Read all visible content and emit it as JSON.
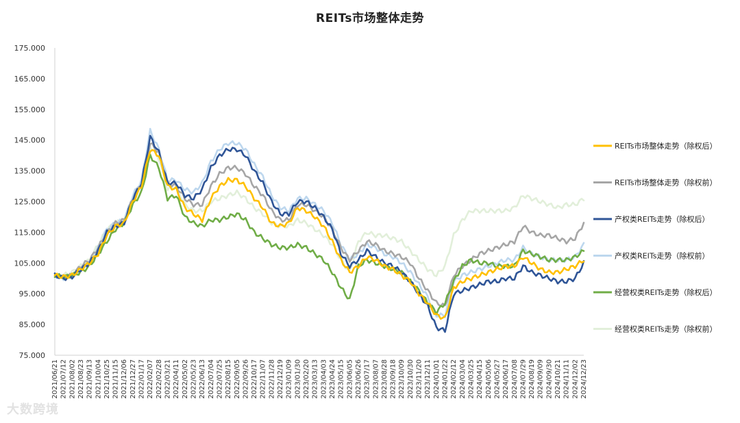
{
  "chart_data": {
    "type": "line",
    "title": "REITs市场整体走势",
    "ylim": [
      75,
      175
    ],
    "yticks": [
      "75.000",
      "85.000",
      "95.000",
      "105.000",
      "115.000",
      "125.000",
      "135.000",
      "145.000",
      "155.000",
      "165.000",
      "175.000"
    ],
    "ytick_values": [
      75,
      85,
      95,
      105,
      115,
      125,
      135,
      145,
      155,
      165,
      175
    ],
    "x": [
      "2021/06/21",
      "2021/07/12",
      "2021/08/02",
      "2021/08/23",
      "2021/09/13",
      "2021/10/04",
      "2021/10/25",
      "2021/11/15",
      "2021/12/06",
      "2021/12/27",
      "2022/01/17",
      "2022/02/07",
      "2022/02/28",
      "2022/03/21",
      "2022/04/11",
      "2022/05/02",
      "2022/05/23",
      "2022/06/13",
      "2022/07/04",
      "2022/07/25",
      "2022/08/15",
      "2022/09/05",
      "2022/09/26",
      "2022/10/17",
      "2022/11/07",
      "2022/11/28",
      "2022/12/19",
      "2023/01/09",
      "2023/01/30",
      "2023/02/20",
      "2023/03/13",
      "2023/04/03",
      "2023/04/24",
      "2023/05/15",
      "2023/06/05",
      "2023/06/26",
      "2023/07/17",
      "2023/08/07",
      "2023/08/28",
      "2023/09/18",
      "2023/10/09",
      "2023/10/30",
      "2023/11/20",
      "2023/12/11",
      "2024/01/01",
      "2024/01/22",
      "2024/02/12",
      "2024/03/04",
      "2024/03/25",
      "2024/04/15",
      "2024/05/06",
      "2024/05/27",
      "2024/06/17",
      "2024/07/08",
      "2024/07/29",
      "2024/08/19",
      "2024/09/09",
      "2024/09/30",
      "2024/10/21",
      "2024/11/11",
      "2024/12/02",
      "2024/12/23"
    ],
    "x_tick_labels": [
      "2021/06/21",
      "2021/07/12",
      "2021/08/02",
      "2021/08/23",
      "2021/09/13",
      "2021/10/04",
      "2021/10/25",
      "2021/11/15",
      "2021/12/06",
      "2021/12/27",
      "2022/01/17",
      "2022/02/07",
      "2022/02/28",
      "2022/03/21",
      "2022/04/11",
      "2022/05/02",
      "2022/05/23",
      "2022/06/13",
      "2022/07/04",
      "2022/07/25",
      "2022/08/15",
      "2022/09/05",
      "2022/09/26",
      "2022/10/17",
      "2022/11/07",
      "2022/11/28",
      "2022/12/19",
      "2023/01/09",
      "2023/01/30",
      "2023/02/20",
      "2023/03/13",
      "2023/04/03",
      "2023/04/24",
      "2023/05/15",
      "2023/06/05",
      "2023/06/26",
      "2023/07/17",
      "2023/08/07",
      "2023/08/28",
      "2023/09/18",
      "2023/10/09",
      "2023/10/30",
      "2023/11/20",
      "2023/12/11",
      "2024/01/01",
      "2024/01/22",
      "2024/02/12",
      "2024/03/04",
      "2024/03/25",
      "2024/04/15",
      "2024/05/06",
      "2024/05/27",
      "2024/06/17",
      "2024/07/08",
      "2024/07/29",
      "2024/08/19",
      "2024/09/09",
      "2024/09/30",
      "2024/10/21",
      "2024/11/11",
      "2024/12/02",
      "2024/12/23"
    ],
    "series": [
      {
        "name": "REITs市场整体走势（除权后）",
        "color": "#ffc000",
        "values": [
          101,
          100.5,
          101,
          103,
          105,
          108,
          114,
          117,
          118,
          125,
          130,
          142,
          140,
          130,
          129,
          123,
          121,
          119,
          126,
          130,
          132,
          132,
          130,
          126,
          123,
          118,
          117,
          118,
          123,
          122,
          120,
          117,
          112,
          106,
          102,
          104,
          107,
          106,
          104,
          103,
          101,
          99,
          95,
          92,
          88,
          87,
          97,
          99,
          100,
          101,
          102,
          103,
          104,
          104,
          107,
          105,
          103,
          102,
          102,
          103,
          104,
          106
        ]
      },
      {
        "name": "REITs市场整体走势（除权前）",
        "color": "#a6a6a6",
        "values": [
          101,
          100.5,
          101,
          104,
          106,
          110,
          115,
          118,
          119,
          126,
          131,
          144,
          141,
          131,
          130,
          126,
          124,
          124,
          130,
          134,
          136,
          136,
          134,
          130,
          127,
          122,
          119,
          119,
          124,
          124,
          122,
          120,
          116,
          110,
          106,
          109,
          112,
          111,
          109,
          108,
          107,
          105,
          100,
          96,
          92,
          91,
          101,
          104,
          106,
          108,
          109,
          110,
          111,
          112,
          117,
          115,
          114,
          114,
          113,
          112,
          113,
          118
        ]
      },
      {
        "name": "产权类REITs走势（除权后）",
        "color": "#2f5597",
        "values": [
          101,
          100,
          100.5,
          103,
          105,
          109,
          115,
          117,
          118,
          126,
          131,
          146,
          141,
          131,
          131,
          127,
          126,
          129,
          136,
          140,
          142,
          142,
          140,
          135,
          131,
          125,
          121,
          121,
          125,
          125,
          123,
          120,
          116,
          108,
          104,
          106,
          109,
          107,
          105,
          104,
          102,
          99,
          95,
          91,
          84,
          83,
          95,
          96,
          97,
          98,
          99,
          99,
          100,
          100,
          104,
          102,
          101,
          100,
          99,
          99,
          100,
          105
        ]
      },
      {
        "name": "产权类REITs走势（除权前）",
        "color": "#bdd7ee",
        "values": [
          101,
          100,
          100.5,
          103,
          105,
          110,
          116,
          118,
          119,
          127,
          132,
          148,
          142,
          132,
          132,
          129,
          128,
          131,
          138,
          142,
          144,
          144,
          142,
          137,
          133,
          127,
          123,
          122,
          126,
          126,
          124,
          122,
          118,
          111,
          106,
          108,
          111,
          110,
          108,
          107,
          105,
          102,
          98,
          94,
          88,
          88,
          99,
          101,
          102,
          103,
          104,
          105,
          106,
          106,
          110,
          108,
          107,
          106,
          106,
          106,
          107,
          111
        ]
      },
      {
        "name": "经营权类REITs走势（除权后）",
        "color": "#70ad47",
        "values": [
          101,
          100.5,
          101,
          102,
          104,
          108,
          112,
          116,
          118,
          124,
          128,
          140,
          136,
          126,
          127,
          120,
          118,
          117,
          119,
          119,
          120,
          121,
          119,
          115,
          113,
          111,
          110,
          110,
          111,
          110,
          108,
          106,
          102,
          97,
          93,
          104,
          106,
          105,
          104,
          103,
          102,
          99,
          96,
          92,
          89,
          92,
          99,
          104,
          106,
          105,
          105,
          104,
          104,
          104,
          109,
          108,
          107,
          106,
          106,
          106,
          107,
          109
        ]
      },
      {
        "name": "经营权类REITs走势（除权前）",
        "color": "#e2efda",
        "values": [
          101,
          101,
          102,
          104,
          106,
          111,
          116,
          118,
          119,
          126,
          130,
          143,
          139,
          129,
          130,
          124,
          122,
          122,
          125,
          126,
          127,
          128,
          126,
          123,
          121,
          118,
          117,
          117,
          119,
          118,
          116,
          114,
          111,
          106,
          102,
          112,
          115,
          114,
          114,
          113,
          112,
          109,
          106,
          103,
          101,
          104,
          114,
          119,
          122,
          122,
          122,
          122,
          122,
          123,
          127,
          126,
          125,
          124,
          123,
          124,
          124,
          126
        ]
      }
    ],
    "legend_position": "right",
    "grid": false
  },
  "watermark": "大数跨境"
}
